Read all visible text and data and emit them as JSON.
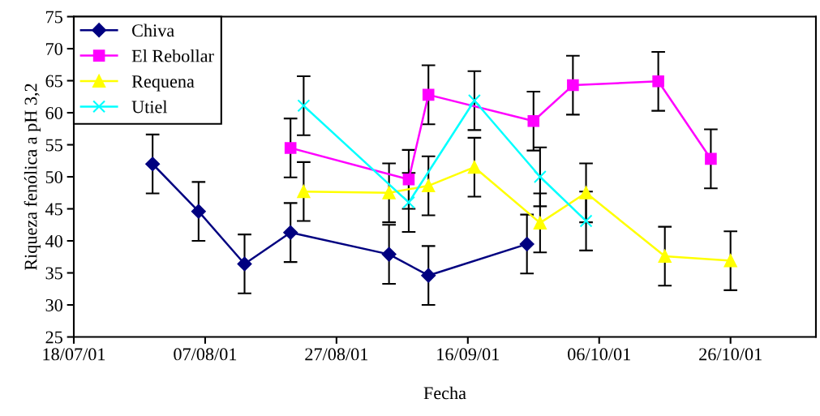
{
  "chart_data": {
    "type": "line",
    "xlabel": "Fecha",
    "ylabel": "Riqueza fenólica a pH 3,2",
    "xlim": [
      "2001-07-18",
      "2001-11-08"
    ],
    "xticks": [
      {
        "value": "2001-07-18",
        "label": "18/07/01"
      },
      {
        "value": "2001-08-07",
        "label": "07/08/01"
      },
      {
        "value": "2001-08-27",
        "label": "27/08/01"
      },
      {
        "value": "2001-09-16",
        "label": "16/09/01"
      },
      {
        "value": "2001-10-06",
        "label": "06/10/01"
      },
      {
        "value": "2001-10-26",
        "label": "26/10/01"
      }
    ],
    "ylim": [
      25,
      75
    ],
    "yticks": [
      25,
      30,
      35,
      40,
      45,
      50,
      55,
      60,
      65,
      70,
      75
    ],
    "grid": false,
    "legend": "top left",
    "series": [
      {
        "name": "Chiva",
        "color": "#000080",
        "marker": "diamond",
        "x": [
          "2001-07-30",
          "2001-08-06",
          "2001-08-13",
          "2001-08-20",
          "2001-09-04",
          "2001-09-10",
          "2001-09-25"
        ],
        "values": [
          52.0,
          44.6,
          36.4,
          41.3,
          37.9,
          34.6,
          39.5
        ],
        "errors": [
          4.6,
          4.6,
          4.6,
          4.6,
          4.6,
          4.6,
          4.6
        ]
      },
      {
        "name": "El Rebollar",
        "color": "#ff00ff",
        "marker": "square",
        "x": [
          "2001-08-20",
          "2001-09-07",
          "2001-09-10",
          "2001-09-26",
          "2001-10-02",
          "2001-10-15",
          "2001-10-23"
        ],
        "values": [
          54.5,
          49.6,
          62.8,
          58.7,
          64.3,
          64.9,
          52.8
        ],
        "errors": [
          4.6,
          4.6,
          4.6,
          4.6,
          4.6,
          4.6,
          4.6
        ]
      },
      {
        "name": "Requena",
        "color": "#ffff00",
        "marker": "triangle",
        "x": [
          "2001-08-22",
          "2001-09-04",
          "2001-09-10",
          "2001-09-17",
          "2001-09-27",
          "2001-10-04",
          "2001-10-16",
          "2001-10-26"
        ],
        "values": [
          47.7,
          47.5,
          48.6,
          51.5,
          42.8,
          47.5,
          37.6,
          36.9
        ],
        "errors": [
          4.6,
          4.6,
          4.6,
          4.6,
          4.6,
          4.6,
          4.6,
          4.6
        ]
      },
      {
        "name": "Utiel",
        "color": "#00ffff",
        "marker": "cross",
        "x": [
          "2001-08-22",
          "2001-09-07",
          "2001-09-17",
          "2001-09-27",
          "2001-10-04"
        ],
        "values": [
          61.1,
          46.0,
          61.9,
          50.0,
          43.1
        ],
        "errors": [
          4.6,
          4.6,
          4.6,
          4.6,
          4.6
        ]
      }
    ]
  }
}
